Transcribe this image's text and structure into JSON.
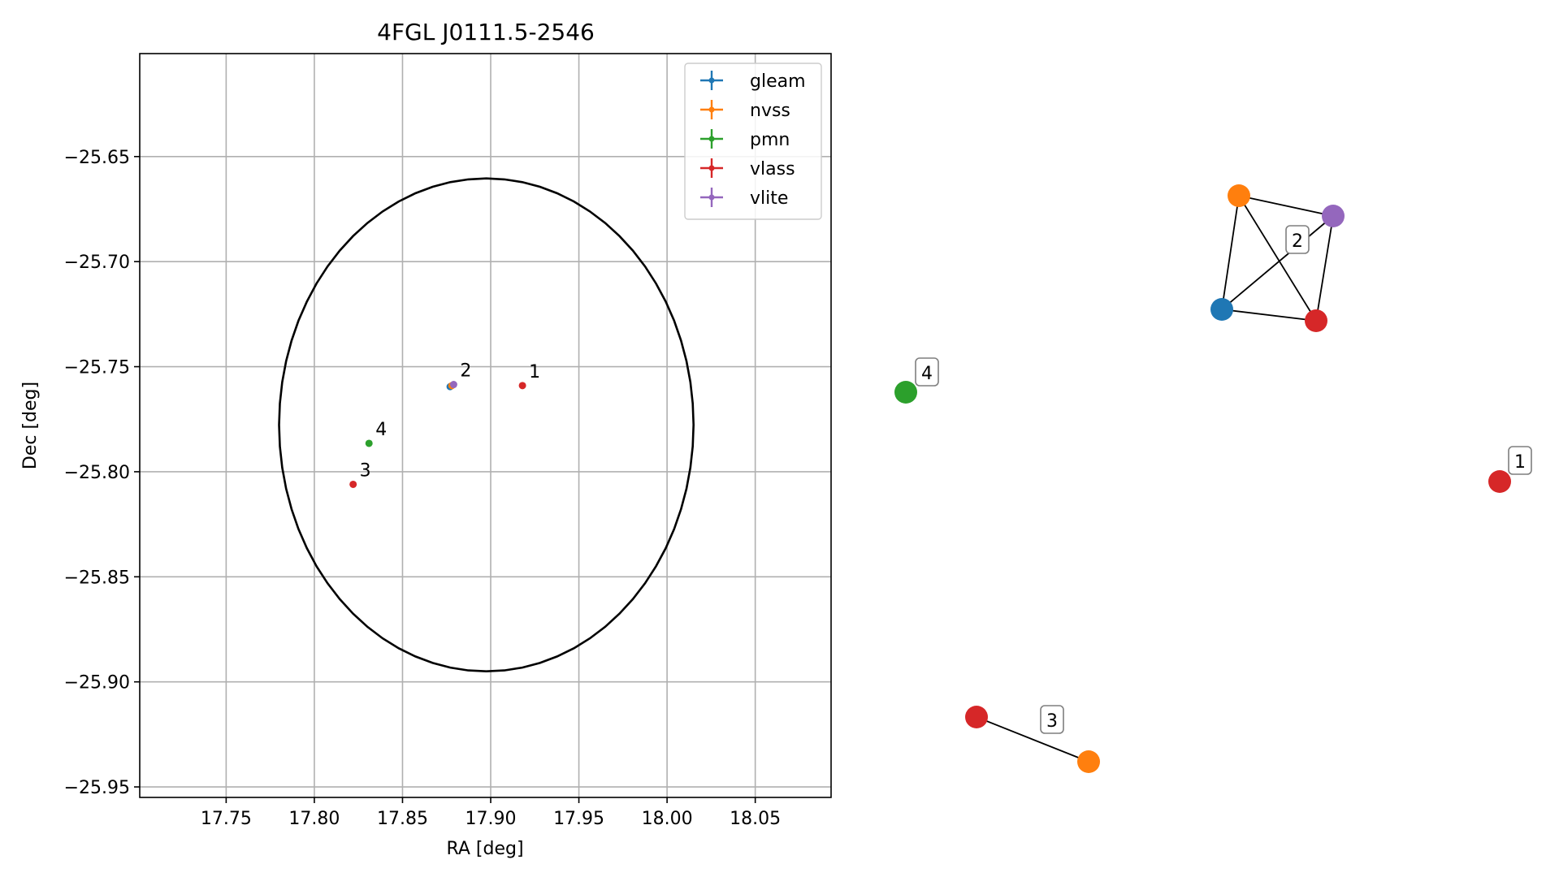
{
  "figure": {
    "title": "4FGL J0111.5-2546"
  },
  "chart_data": [
    {
      "type": "scatter",
      "title": "4FGL J0111.5-2546",
      "xlabel": "RA [deg]",
      "ylabel": "Dec [deg]",
      "xlim": [
        17.701,
        18.093
      ],
      "ylim": [
        -25.955,
        -25.601
      ],
      "xticks": [
        17.75,
        17.8,
        17.85,
        17.9,
        17.95,
        18.0,
        18.05
      ],
      "xtick_labels": [
        "17.75",
        "17.80",
        "17.85",
        "17.90",
        "17.95",
        "18.00",
        "18.05"
      ],
      "yticks": [
        -25.65,
        -25.7,
        -25.75,
        -25.8,
        -25.85,
        -25.9,
        -25.95
      ],
      "ytick_labels": [
        "−25.65",
        "−25.70",
        "−25.75",
        "−25.80",
        "−25.85",
        "−25.90",
        "−25.95"
      ],
      "grid": true,
      "legend_position": "top-right",
      "ellipse": {
        "center": [
          17.8975,
          -25.7777
        ],
        "semi_axis_ra": 0.1175,
        "semi_axis_dec": 0.1173,
        "color": "#000000"
      },
      "series": [
        {
          "name": "gleam",
          "color": "#1f77b4",
          "points": [
            {
              "ra": 17.877,
              "dec": -25.7595
            }
          ]
        },
        {
          "name": "nvss",
          "color": "#ff7f0e",
          "points": [
            {
              "ra": 17.878,
              "dec": -25.759
            }
          ]
        },
        {
          "name": "pmn",
          "color": "#2ca02c",
          "points": [
            {
              "ra": 17.831,
              "dec": -25.7865
            }
          ]
        },
        {
          "name": "vlass",
          "color": "#d62728",
          "points": [
            {
              "ra": 17.918,
              "dec": -25.759
            },
            {
              "ra": 17.822,
              "dec": -25.806
            }
          ]
        },
        {
          "name": "vlite",
          "color": "#9467bd",
          "points": [
            {
              "ra": 17.879,
              "dec": -25.7585
            }
          ]
        }
      ],
      "point_labels": [
        {
          "text": "1",
          "ra": 17.918,
          "dec": -25.759
        },
        {
          "text": "2",
          "ra": 17.879,
          "dec": -25.7585
        },
        {
          "text": "3",
          "ra": 17.822,
          "dec": -25.806
        },
        {
          "text": "4",
          "ra": 17.831,
          "dec": -25.7865
        }
      ]
    },
    {
      "type": "network",
      "nodes": [
        {
          "id": "g2-nvss",
          "group": "2",
          "color": "#ff7f0e"
        },
        {
          "id": "g2-vlite",
          "group": "2",
          "color": "#9467bd"
        },
        {
          "id": "g2-gleam",
          "group": "2",
          "color": "#1f77b4"
        },
        {
          "id": "g2-vlass",
          "group": "2",
          "color": "#d62728"
        },
        {
          "id": "g4-pmn",
          "group": "4",
          "color": "#2ca02c"
        },
        {
          "id": "g1-vlass",
          "group": "1",
          "color": "#d62728"
        },
        {
          "id": "g3-vlass",
          "group": "3",
          "color": "#d62728"
        },
        {
          "id": "g3-nvss",
          "group": "3",
          "color": "#ff7f0e"
        }
      ],
      "edges": [
        [
          "g2-nvss",
          "g2-vlite"
        ],
        [
          "g2-nvss",
          "g2-gleam"
        ],
        [
          "g2-nvss",
          "g2-vlass"
        ],
        [
          "g2-vlite",
          "g2-gleam"
        ],
        [
          "g2-vlite",
          "g2-vlass"
        ],
        [
          "g2-gleam",
          "g2-vlass"
        ],
        [
          "g3-vlass",
          "g3-nvss"
        ]
      ],
      "group_labels": [
        "1",
        "2",
        "3",
        "4"
      ]
    }
  ]
}
